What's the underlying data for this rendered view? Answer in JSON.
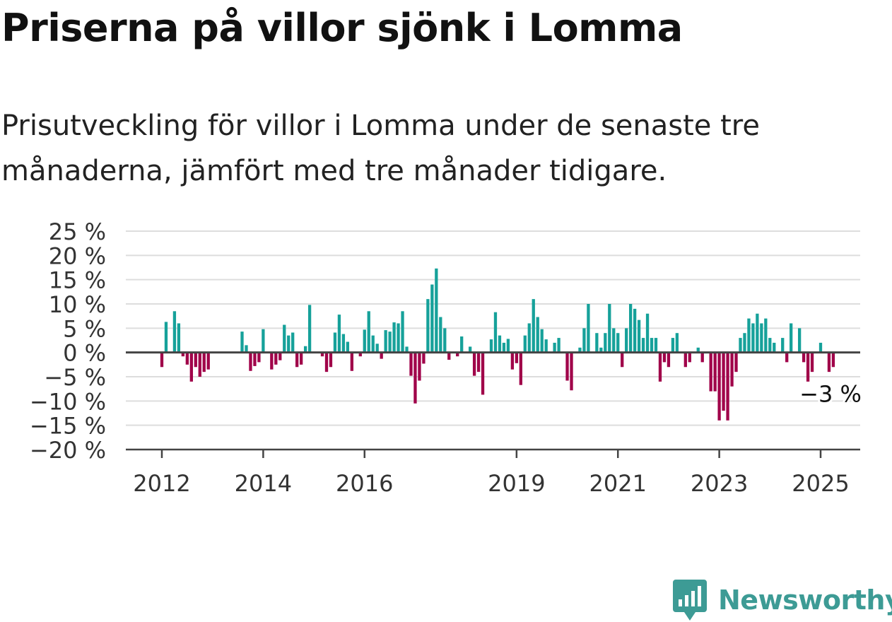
{
  "title": "Priserna på villor sjönk i Lomma",
  "subtitle": "Prisutveckling för villor i Lomma under de senaste tre månaderna, jämfört med tre månader tidigare.",
  "brand": {
    "name": "Newsworthy",
    "color": "#3d9b95"
  },
  "colors": {
    "positive": "#16a19a",
    "negative": "#a00049",
    "grid": "#dddddd",
    "axis": "#444444"
  },
  "chart_data": {
    "type": "bar",
    "x_tick_labels": [
      "2012",
      "2014",
      "2016",
      "2019",
      "2021",
      "2023",
      "2025"
    ],
    "y_tick_labels": [
      "25 %",
      "20 %",
      "15 %",
      "10 %",
      "5 %",
      "0 %",
      "−5 %",
      "−10 %",
      "−15 %",
      "−20 %"
    ],
    "ylim": [
      -20,
      25
    ],
    "end_label": "−3 %",
    "series": [
      {
        "points": [
          {
            "x": "2012-01",
            "y": -3
          },
          {
            "x": "2012-02",
            "y": 6.3
          },
          {
            "x": "2012-03",
            "y": 0
          },
          {
            "x": "2012-04",
            "y": 8.5
          },
          {
            "x": "2012-05",
            "y": 6
          },
          {
            "x": "2012-06",
            "y": -0.8
          },
          {
            "x": "2012-07",
            "y": -2.5
          },
          {
            "x": "2012-08",
            "y": -6
          },
          {
            "x": "2012-09",
            "y": -3
          },
          {
            "x": "2012-10",
            "y": -5
          },
          {
            "x": "2012-11",
            "y": -4
          },
          {
            "x": "2012-12",
            "y": -3.5
          },
          {
            "x": "2013-08",
            "y": 4.3
          },
          {
            "x": "2013-09",
            "y": 1.5
          },
          {
            "x": "2013-10",
            "y": -3.8
          },
          {
            "x": "2013-11",
            "y": -2.8
          },
          {
            "x": "2013-12",
            "y": -2
          },
          {
            "x": "2014-01",
            "y": 4.8
          },
          {
            "x": "2014-02",
            "y": 0
          },
          {
            "x": "2014-03",
            "y": -3.5
          },
          {
            "x": "2014-04",
            "y": -2.5
          },
          {
            "x": "2014-05",
            "y": -1.6
          },
          {
            "x": "2014-06",
            "y": 5.7
          },
          {
            "x": "2014-07",
            "y": 3.5
          },
          {
            "x": "2014-08",
            "y": 4.1
          },
          {
            "x": "2014-09",
            "y": -3
          },
          {
            "x": "2014-10",
            "y": -2.5
          },
          {
            "x": "2014-11",
            "y": 1.3
          },
          {
            "x": "2014-12",
            "y": 9.8
          },
          {
            "x": "2015-03",
            "y": -0.8
          },
          {
            "x": "2015-04",
            "y": -4
          },
          {
            "x": "2015-05",
            "y": -3
          },
          {
            "x": "2015-06",
            "y": 4.1
          },
          {
            "x": "2015-07",
            "y": 7.8
          },
          {
            "x": "2015-08",
            "y": 3.8
          },
          {
            "x": "2015-09",
            "y": 2.2
          },
          {
            "x": "2015-10",
            "y": -3.8
          },
          {
            "x": "2015-11",
            "y": 0
          },
          {
            "x": "2015-12",
            "y": -0.8
          },
          {
            "x": "2016-01",
            "y": 4.7
          },
          {
            "x": "2016-02",
            "y": 8.5
          },
          {
            "x": "2016-03",
            "y": 3.5
          },
          {
            "x": "2016-04",
            "y": 1.8
          },
          {
            "x": "2016-05",
            "y": -1.3
          },
          {
            "x": "2016-06",
            "y": 4.6
          },
          {
            "x": "2016-07",
            "y": 4.3
          },
          {
            "x": "2016-08",
            "y": 6.2
          },
          {
            "x": "2016-09",
            "y": 6
          },
          {
            "x": "2016-10",
            "y": 8.5
          },
          {
            "x": "2016-11",
            "y": 1.2
          },
          {
            "x": "2016-12",
            "y": -4.8
          },
          {
            "x": "2017-01",
            "y": -10.5
          },
          {
            "x": "2017-02",
            "y": -5.8
          },
          {
            "x": "2017-03",
            "y": -2.3
          },
          {
            "x": "2017-04",
            "y": 11
          },
          {
            "x": "2017-05",
            "y": 14
          },
          {
            "x": "2017-06",
            "y": 17.3
          },
          {
            "x": "2017-07",
            "y": 7.3
          },
          {
            "x": "2017-08",
            "y": 5
          },
          {
            "x": "2017-09",
            "y": -1.5
          },
          {
            "x": "2017-10",
            "y": 0
          },
          {
            "x": "2017-11",
            "y": -0.8
          },
          {
            "x": "2017-12",
            "y": 3.3
          },
          {
            "x": "2018-01",
            "y": 0
          },
          {
            "x": "2018-02",
            "y": 1.2
          },
          {
            "x": "2018-03",
            "y": -4.8
          },
          {
            "x": "2018-04",
            "y": -4
          },
          {
            "x": "2018-05",
            "y": -8.7
          },
          {
            "x": "2018-06",
            "y": 0
          },
          {
            "x": "2018-07",
            "y": 2.7
          },
          {
            "x": "2018-08",
            "y": 8.3
          },
          {
            "x": "2018-09",
            "y": 3.5
          },
          {
            "x": "2018-10",
            "y": 2
          },
          {
            "x": "2018-11",
            "y": 2.8
          },
          {
            "x": "2018-12",
            "y": -3.5
          },
          {
            "x": "2019-01",
            "y": -2.2
          },
          {
            "x": "2019-02",
            "y": -6.7
          },
          {
            "x": "2019-03",
            "y": 3.5
          },
          {
            "x": "2019-04",
            "y": 6
          },
          {
            "x": "2019-05",
            "y": 11
          },
          {
            "x": "2019-06",
            "y": 7.3
          },
          {
            "x": "2019-07",
            "y": 4.8
          },
          {
            "x": "2019-08",
            "y": 2.7
          },
          {
            "x": "2019-09",
            "y": 0
          },
          {
            "x": "2019-10",
            "y": 2
          },
          {
            "x": "2019-11",
            "y": 3
          },
          {
            "x": "2019-12",
            "y": 0
          },
          {
            "x": "2020-01",
            "y": -5.8
          },
          {
            "x": "2020-02",
            "y": -7.8
          },
          {
            "x": "2020-03",
            "y": 0
          },
          {
            "x": "2020-04",
            "y": 1
          },
          {
            "x": "2020-05",
            "y": 5
          },
          {
            "x": "2020-06",
            "y": 10
          },
          {
            "x": "2020-07",
            "y": 0
          },
          {
            "x": "2020-08",
            "y": 4
          },
          {
            "x": "2020-09",
            "y": 1
          },
          {
            "x": "2020-10",
            "y": 4
          },
          {
            "x": "2020-11",
            "y": 10
          },
          {
            "x": "2020-12",
            "y": 5
          },
          {
            "x": "2021-01",
            "y": 4
          },
          {
            "x": "2021-02",
            "y": -3
          },
          {
            "x": "2021-03",
            "y": 5
          },
          {
            "x": "2021-04",
            "y": 10
          },
          {
            "x": "2021-05",
            "y": 9
          },
          {
            "x": "2021-06",
            "y": 6.7
          },
          {
            "x": "2021-07",
            "y": 3
          },
          {
            "x": "2021-08",
            "y": 8
          },
          {
            "x": "2021-09",
            "y": 3
          },
          {
            "x": "2021-10",
            "y": 3
          },
          {
            "x": "2021-11",
            "y": -6
          },
          {
            "x": "2021-12",
            "y": -2
          },
          {
            "x": "2022-01",
            "y": -3
          },
          {
            "x": "2022-02",
            "y": 3
          },
          {
            "x": "2022-03",
            "y": 4
          },
          {
            "x": "2022-04",
            "y": 0
          },
          {
            "x": "2022-05",
            "y": -3
          },
          {
            "x": "2022-06",
            "y": -2
          },
          {
            "x": "2022-07",
            "y": 0
          },
          {
            "x": "2022-08",
            "y": 1
          },
          {
            "x": "2022-09",
            "y": -2
          },
          {
            "x": "2022-10",
            "y": 0
          },
          {
            "x": "2022-11",
            "y": -8
          },
          {
            "x": "2022-12",
            "y": -8
          },
          {
            "x": "2023-01",
            "y": -14
          },
          {
            "x": "2023-02",
            "y": -12
          },
          {
            "x": "2023-03",
            "y": -14
          },
          {
            "x": "2023-04",
            "y": -7
          },
          {
            "x": "2023-05",
            "y": -4
          },
          {
            "x": "2023-06",
            "y": 3
          },
          {
            "x": "2023-07",
            "y": 4
          },
          {
            "x": "2023-08",
            "y": 7
          },
          {
            "x": "2023-09",
            "y": 6
          },
          {
            "x": "2023-10",
            "y": 8
          },
          {
            "x": "2023-11",
            "y": 6
          },
          {
            "x": "2023-12",
            "y": 7
          },
          {
            "x": "2024-01",
            "y": 3
          },
          {
            "x": "2024-02",
            "y": 2
          },
          {
            "x": "2024-03",
            "y": 0
          },
          {
            "x": "2024-04",
            "y": 3
          },
          {
            "x": "2024-05",
            "y": -2
          },
          {
            "x": "2024-06",
            "y": 6
          },
          {
            "x": "2024-07",
            "y": 0
          },
          {
            "x": "2024-08",
            "y": 5
          },
          {
            "x": "2024-09",
            "y": -2
          },
          {
            "x": "2024-10",
            "y": -6
          },
          {
            "x": "2024-11",
            "y": -4
          },
          {
            "x": "2024-12",
            "y": 0
          },
          {
            "x": "2025-01",
            "y": 2
          },
          {
            "x": "2025-02",
            "y": 0
          },
          {
            "x": "2025-03",
            "y": -4
          },
          {
            "x": "2025-04",
            "y": -3
          }
        ]
      }
    ]
  }
}
